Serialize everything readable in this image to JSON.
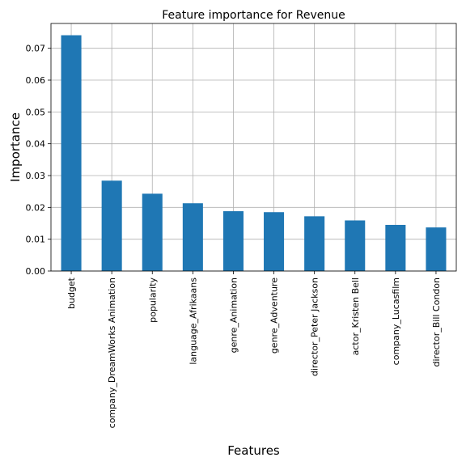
{
  "chart_data": {
    "type": "bar",
    "title": "Feature importance for Revenue",
    "xlabel": "Features",
    "ylabel": "Importance",
    "categories": [
      "budget",
      "company_DreamWorks Animation",
      "popularity",
      "language_Afrikaans",
      "genre_Animation",
      "genre_Adventure",
      "director_Peter Jackson",
      "actor_Kristen Bell",
      "company_Lucasfilm",
      "director_Bill Condon"
    ],
    "values": [
      0.0741,
      0.0284,
      0.0243,
      0.0213,
      0.0188,
      0.0185,
      0.0172,
      0.0159,
      0.0145,
      0.0137
    ],
    "ylim": [
      0,
      0.0778
    ],
    "yticks": [
      "0.00",
      "0.01",
      "0.02",
      "0.03",
      "0.04",
      "0.05",
      "0.06",
      "0.07"
    ],
    "grid": true,
    "bar_color": "#1f77b4"
  }
}
